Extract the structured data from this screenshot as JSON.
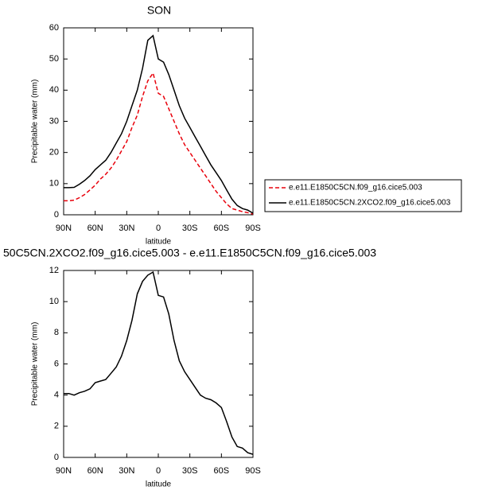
{
  "chart_data": [
    {
      "type": "line",
      "title": "SON",
      "x_label": "latitude",
      "y_label": "Precipitable water (mm)",
      "x": [
        90,
        85,
        80,
        75,
        70,
        65,
        60,
        55,
        50,
        45,
        40,
        35,
        30,
        25,
        20,
        15,
        10,
        5,
        0,
        -5,
        -10,
        -15,
        -20,
        -25,
        -30,
        -35,
        -40,
        -45,
        -50,
        -55,
        -60,
        -65,
        -70,
        -75,
        -80,
        -85,
        -90
      ],
      "xlim": [
        90,
        -90
      ],
      "xticks": [
        {
          "value": 90,
          "label": "90N"
        },
        {
          "value": 60,
          "label": "60N"
        },
        {
          "value": 30,
          "label": "30N"
        },
        0,
        {
          "value": -30,
          "label": "30S"
        },
        {
          "value": -60,
          "label": "60S"
        },
        {
          "value": -90,
          "label": "90S"
        }
      ],
      "ylim": [
        0,
        60
      ],
      "yticks": [
        0,
        10,
        20,
        30,
        40,
        50,
        60
      ],
      "series": [
        {
          "name": "e.e11.E1850C5CN.f09_g16.cice5.003",
          "color": "#e8000b",
          "dash": "dashed",
          "values": [
            4.5,
            4.5,
            4.7,
            5.5,
            6.5,
            8,
            9.5,
            11.5,
            13,
            15,
            17.5,
            20.5,
            23.5,
            28,
            32,
            38,
            43,
            45.5,
            39,
            38,
            34,
            30,
            26,
            22.5,
            20,
            17.5,
            15,
            12.5,
            10,
            7.5,
            5.5,
            3.5,
            2,
            1.5,
            1,
            0.7,
            0.2
          ]
        },
        {
          "name": "e.e11.E1850C5CN.2XCO2.f09_g16.cice5.003",
          "color": "#000000",
          "dash": "solid",
          "values": [
            8.7,
            8.7,
            8.8,
            9.8,
            11,
            12.5,
            14.5,
            16,
            17.5,
            20,
            23,
            26,
            30,
            35,
            40,
            47,
            56,
            57.5,
            50,
            49,
            45,
            40,
            35,
            31,
            28,
            25,
            22,
            19,
            16,
            13.5,
            11,
            8,
            5,
            3,
            2,
            1.5,
            0.5
          ]
        }
      ]
    },
    {
      "type": "line",
      "title": "50C5CN.2XCO2.f09_g16.cice5.003 - e.e11.E1850C5CN.f09_g16.cice5.003",
      "x_label": "latitude",
      "y_label": "Precipitable water (mm)",
      "x": [
        90,
        85,
        80,
        75,
        70,
        65,
        60,
        55,
        50,
        45,
        40,
        35,
        30,
        25,
        20,
        15,
        10,
        5,
        0,
        -5,
        -10,
        -15,
        -20,
        -25,
        -30,
        -35,
        -40,
        -45,
        -50,
        -55,
        -60,
        -65,
        -70,
        -75,
        -80,
        -85,
        -90
      ],
      "xlim": [
        90,
        -90
      ],
      "xticks": [
        {
          "value": 90,
          "label": "90N"
        },
        {
          "value": 60,
          "label": "60N"
        },
        {
          "value": 30,
          "label": "30N"
        },
        0,
        {
          "value": -30,
          "label": "30S"
        },
        {
          "value": -60,
          "label": "60S"
        },
        {
          "value": -90,
          "label": "90S"
        }
      ],
      "ylim": [
        0,
        12
      ],
      "yticks": [
        0,
        2,
        4,
        6,
        8,
        10,
        12
      ],
      "color": "#000000",
      "values": [
        4.1,
        4.1,
        4.0,
        4.15,
        4.25,
        4.4,
        4.8,
        4.9,
        5.0,
        5.4,
        5.8,
        6.5,
        7.5,
        8.8,
        10.5,
        11.3,
        11.7,
        11.9,
        10.4,
        10.3,
        9.2,
        7.5,
        6.2,
        5.5,
        5.0,
        4.5,
        4.0,
        3.8,
        3.7,
        3.5,
        3.2,
        2.3,
        1.3,
        0.7,
        0.6,
        0.3,
        0.2
      ]
    }
  ]
}
